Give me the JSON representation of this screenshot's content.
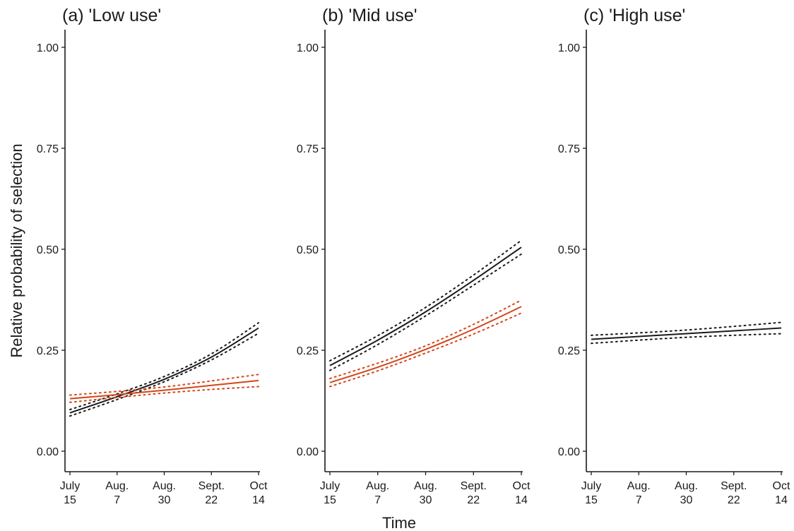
{
  "figure": {
    "ylabel": "Relative probability of selection",
    "xlabel": "Time"
  },
  "chart_data": [
    {
      "type": "line",
      "title": "(a) 'Low use'",
      "xlabel": "Time",
      "ylabel": "Relative probability of selection",
      "ylim": [
        0,
        1
      ],
      "yticks": [
        "0.00",
        "0.25",
        "0.50",
        "0.75",
        "1.00"
      ],
      "xtick_labels": [
        [
          "July",
          "15"
        ],
        [
          "Aug.",
          "7"
        ],
        [
          "Aug.",
          "30"
        ],
        [
          "Sept.",
          "22"
        ],
        [
          "Oct",
          "14"
        ]
      ],
      "x": [
        0,
        1,
        2,
        3,
        4
      ],
      "series": [
        {
          "color": "#1a1a1a",
          "values": [
            0.095,
            0.135,
            0.178,
            0.233,
            0.305
          ],
          "ci_lower": [
            0.087,
            0.128,
            0.172,
            0.226,
            0.292
          ],
          "ci_upper": [
            0.103,
            0.142,
            0.185,
            0.241,
            0.318
          ]
        },
        {
          "color": "#d2461a",
          "values": [
            0.13,
            0.14,
            0.151,
            0.163,
            0.175
          ],
          "ci_lower": [
            0.121,
            0.133,
            0.144,
            0.153,
            0.16
          ],
          "ci_upper": [
            0.139,
            0.148,
            0.159,
            0.174,
            0.19
          ]
        }
      ]
    },
    {
      "type": "line",
      "title": "(b) 'Mid use'",
      "xlabel": "Time",
      "ylabel": "Relative probability of selection",
      "ylim": [
        0,
        1
      ],
      "yticks": [
        "0.00",
        "0.25",
        "0.50",
        "0.75",
        "1.00"
      ],
      "xtick_labels": [
        [
          "July",
          "15"
        ],
        [
          "Aug.",
          "7"
        ],
        [
          "Aug.",
          "30"
        ],
        [
          "Sept.",
          "22"
        ],
        [
          "Oct",
          "14"
        ]
      ],
      "x": [
        0,
        1,
        2,
        3,
        4
      ],
      "series": [
        {
          "color": "#1a1a1a",
          "values": [
            0.212,
            0.275,
            0.345,
            0.423,
            0.505
          ],
          "ci_lower": [
            0.2,
            0.264,
            0.335,
            0.411,
            0.488
          ],
          "ci_upper": [
            0.224,
            0.286,
            0.356,
            0.436,
            0.522
          ]
        },
        {
          "color": "#d2461a",
          "values": [
            0.17,
            0.208,
            0.252,
            0.302,
            0.358
          ],
          "ci_lower": [
            0.16,
            0.199,
            0.243,
            0.29,
            0.342
          ],
          "ci_upper": [
            0.18,
            0.218,
            0.261,
            0.314,
            0.374
          ]
        }
      ]
    },
    {
      "type": "line",
      "title": "(c) 'High use'",
      "xlabel": "Time",
      "ylabel": "Relative probability of selection",
      "ylim": [
        0,
        1
      ],
      "yticks": [
        "0.00",
        "0.25",
        "0.50",
        "0.75",
        "1.00"
      ],
      "xtick_labels": [
        [
          "July",
          "15"
        ],
        [
          "Aug.",
          "7"
        ],
        [
          "Aug.",
          "30"
        ],
        [
          "Sept.",
          "22"
        ],
        [
          "Oct",
          "14"
        ]
      ],
      "x": [
        0,
        1,
        2,
        3,
        4
      ],
      "series": [
        {
          "color": "#1a1a1a",
          "values": [
            0.277,
            0.284,
            0.291,
            0.298,
            0.305
          ],
          "ci_lower": [
            0.267,
            0.275,
            0.282,
            0.287,
            0.291
          ],
          "ci_upper": [
            0.287,
            0.293,
            0.3,
            0.309,
            0.319
          ]
        }
      ]
    }
  ]
}
